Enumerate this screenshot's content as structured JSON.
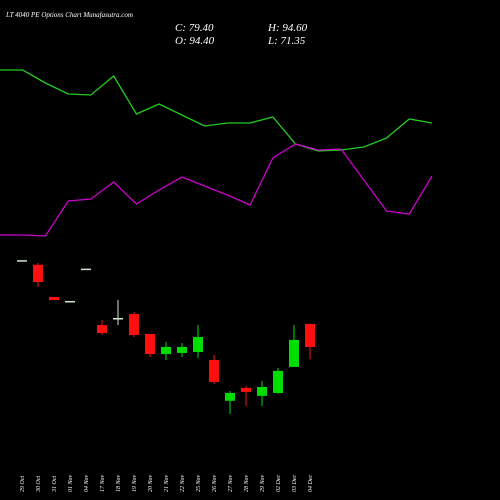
{
  "chart_data": [
    {
      "type": "candlestick",
      "title": "LT 4040 PE Options Chart Munafasutra.com",
      "ohlc_labels": [
        "C: 79.40",
        "H: 94.60",
        "O: 94.40",
        "L: 71.35"
      ],
      "categories": [
        "29 Oct",
        "30 Oct",
        "31 Oct",
        "01 Nov",
        "04 Nov",
        "17 Nov",
        "18 Nov",
        "19 Nov",
        "20 Nov",
        "21 Nov",
        "22 Nov",
        "25 Nov",
        "26 Nov",
        "27 Nov",
        "28 Nov",
        "29 Nov",
        "02 Dec",
        "03 Dec",
        "04 Dec"
      ],
      "open": [
        136,
        133,
        112,
        109.4,
        130.5,
        93.7,
        98.3,
        100.9,
        87.9,
        74.8,
        75.5,
        76.1,
        70.9,
        44.3,
        52.7,
        47.5,
        49.4,
        66.4,
        94.4
      ],
      "high": [
        136,
        134.2,
        112,
        109.4,
        130.5,
        97,
        110,
        102.2,
        87.9,
        82.7,
        82,
        93.7,
        74.2,
        50.7,
        54,
        57.2,
        65.7,
        93.7,
        94.6
      ],
      "low": [
        136,
        118.5,
        110,
        109.4,
        130.5,
        87.2,
        93.7,
        85.9,
        72.9,
        70.9,
        72.9,
        72.2,
        55.3,
        35.7,
        40.9,
        40.9,
        48.8,
        66.4,
        71.35
      ],
      "close": [
        136,
        121.8,
        110,
        109.4,
        130.5,
        88.5,
        98.3,
        87.2,
        74.8,
        79.4,
        79.4,
        85.9,
        56.6,
        49.4,
        50.1,
        53.3,
        63.8,
        84,
        79.4
      ],
      "ylim": [
        -20.4,
        305.7
      ],
      "up_color": "#00dd00",
      "down_color": "#ff1010",
      "flat_color": "#cfe8cf"
    },
    {
      "type": "line",
      "ylim": [
        0,
        500
      ],
      "series": [
        {
          "color": "#22cc22",
          "values": [
            430,
            430,
            417,
            406,
            405,
            424,
            386,
            396,
            385,
            374,
            377,
            377,
            383,
            356,
            349,
            350,
            353,
            362,
            381,
            377
          ]
        },
        {
          "color": "#cc00cc",
          "values": [
            265,
            265,
            264,
            299,
            301,
            318,
            296,
            310,
            323,
            314,
            305,
            295,
            342,
            356,
            350,
            351,
            320,
            289,
            286,
            324
          ]
        }
      ]
    }
  ]
}
